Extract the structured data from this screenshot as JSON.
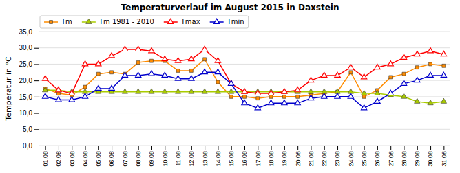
{
  "chart_data": {
    "type": "line",
    "title": "Temperaturverlauf im August 2015 in Daxstein",
    "ylabel": "Temperatur in °C",
    "categories": [
      "01.08",
      "02.08",
      "03.08",
      "04.08",
      "05.08",
      "06.08",
      "07.08",
      "08.08",
      "09.08",
      "10.08",
      "11.08",
      "12.08",
      "13.08",
      "14.08",
      "15.08",
      "16.08",
      "17.08",
      "18.08",
      "19.08",
      "20.08",
      "21.08",
      "22.08",
      "23.08",
      "24.08",
      "25.08",
      "26.08",
      "27.08",
      "28.08",
      "29.08",
      "30.08",
      "31.08"
    ],
    "series": [
      {
        "name": "Tm",
        "color": "#ff8c00",
        "marker": "square",
        "values": [
          17.5,
          16.0,
          15.5,
          18.0,
          22.0,
          22.5,
          22.0,
          25.5,
          26.0,
          26.0,
          23.0,
          23.0,
          26.5,
          19.5,
          15.0,
          15.0,
          14.5,
          15.0,
          15.0,
          15.0,
          15.5,
          16.0,
          16.5,
          22.5,
          15.0,
          17.0,
          21.0,
          22.0,
          24.0,
          25.0,
          24.5
        ]
      },
      {
        "name": "Tm 1981 - 2010",
        "color": "#aacc00",
        "marker": "triangle",
        "values": [
          17.0,
          17.0,
          16.5,
          16.5,
          16.5,
          16.5,
          16.5,
          16.5,
          16.5,
          16.5,
          16.5,
          16.5,
          16.5,
          16.5,
          16.5,
          16.5,
          16.5,
          16.5,
          16.5,
          16.5,
          16.5,
          16.5,
          16.5,
          16.5,
          16.0,
          16.0,
          15.5,
          15.0,
          13.5,
          13.0,
          13.5
        ]
      },
      {
        "name": "Tmax",
        "color": "#ff0000",
        "marker": "triangle-open",
        "values": [
          20.5,
          17.0,
          16.0,
          25.0,
          25.0,
          27.5,
          29.5,
          29.5,
          29.0,
          26.5,
          26.0,
          26.5,
          29.5,
          26.0,
          19.0,
          16.5,
          16.0,
          16.0,
          16.5,
          17.0,
          20.0,
          21.5,
          21.5,
          24.0,
          21.0,
          24.0,
          25.0,
          27.0,
          28.0,
          29.0,
          28.0
        ]
      },
      {
        "name": "Tmin",
        "color": "#0000cc",
        "marker": "triangle-open",
        "values": [
          15.0,
          14.0,
          14.0,
          15.0,
          17.5,
          17.5,
          21.5,
          21.5,
          22.0,
          21.5,
          20.5,
          20.5,
          22.5,
          22.5,
          19.0,
          13.0,
          11.5,
          13.0,
          13.0,
          13.0,
          14.5,
          15.0,
          15.0,
          15.0,
          11.5,
          13.5,
          16.0,
          19.0,
          20.0,
          21.5,
          21.5
        ]
      }
    ],
    "ylim": [
      0.0,
      35.0
    ],
    "yticks": [
      {
        "value": 0.0,
        "label": "0,0"
      },
      {
        "value": 5.0,
        "label": "5,0"
      },
      {
        "value": 10.0,
        "label": "10,0"
      },
      {
        "value": 15.0,
        "label": "15,0"
      },
      {
        "value": 20.0,
        "label": "20,0"
      },
      {
        "value": 25.0,
        "label": "25,0"
      },
      {
        "value": 30.0,
        "label": "30,0"
      },
      {
        "value": 35.0,
        "label": "35,0"
      }
    ],
    "grid": true,
    "legend": "upper left"
  }
}
